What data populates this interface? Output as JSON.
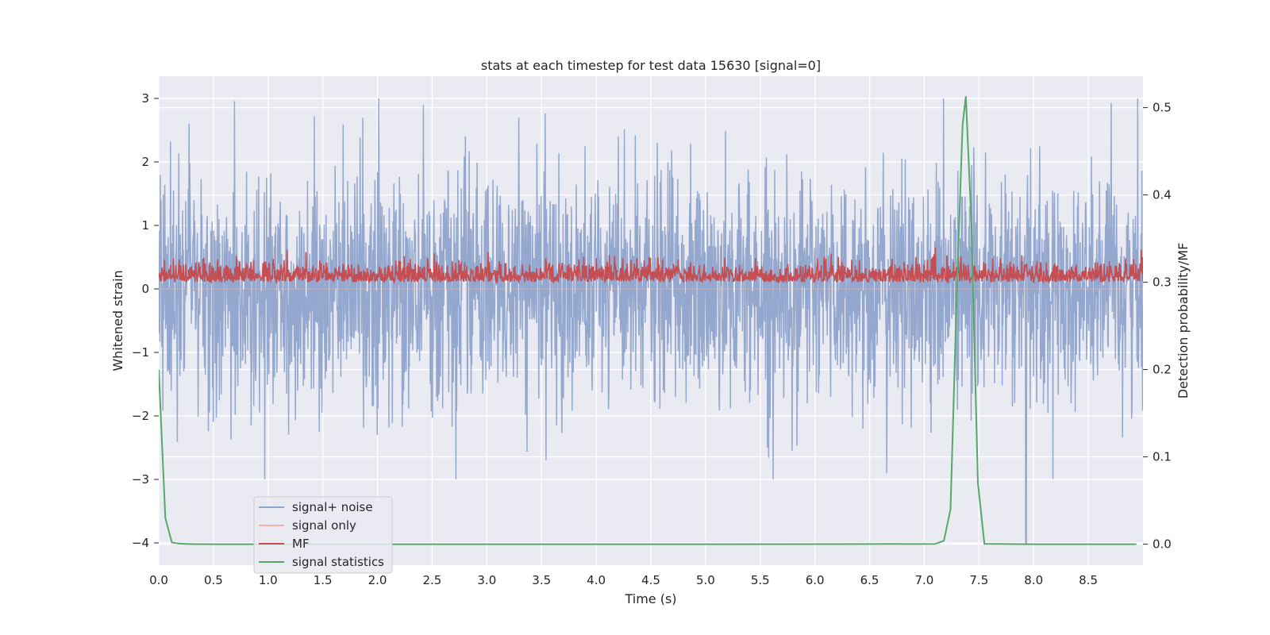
{
  "chart_data": {
    "type": "line",
    "title": "stats at each timestep for test data 15630 [signal=0]",
    "xlabel": "Time (s)",
    "ylabel": "Whitened strain",
    "ylabel_right": "Detection probability/MF",
    "xlim": [
      0.0,
      9.0
    ],
    "ylim": [
      -4.35,
      3.35
    ],
    "ylim_right": [
      -0.024,
      0.536
    ],
    "xticks": [
      "0.0",
      "0.5",
      "1.0",
      "1.5",
      "2.0",
      "2.5",
      "3.0",
      "3.5",
      "4.0",
      "4.5",
      "5.0",
      "5.5",
      "6.0",
      "6.5",
      "7.0",
      "7.5",
      "8.0",
      "8.5"
    ],
    "yticks": [
      "3",
      "2",
      "1",
      "0",
      "−1",
      "−2",
      "−3",
      "−4"
    ],
    "yticks_right": [
      "0.5",
      "0.4",
      "0.3",
      "0.2",
      "0.1",
      "0.0"
    ],
    "grid": true,
    "legend_position": "lower-left",
    "series": [
      {
        "name": "signal+ noise",
        "color": "#8fa4cc",
        "axis": "left",
        "kind": "noise",
        "mean": 0.0,
        "std": 0.9,
        "peak_max": 3.0,
        "peak_min": -4.0,
        "outlier_t": 7.93
      },
      {
        "name": "signal only",
        "color": "#f0b39c",
        "axis": "left",
        "kind": "flat"
      },
      {
        "name": "MF",
        "color": "#c44e52",
        "axis": "right",
        "kind": "noise",
        "base": 0.3,
        "range_max": 0.34
      },
      {
        "name": "signal statistics",
        "color": "#55a868",
        "axis": "right",
        "kind": "line",
        "x": [
          0.0,
          0.06,
          0.12,
          0.18,
          0.25,
          0.35,
          0.5,
          1.0,
          3.0,
          5.0,
          6.5,
          6.7,
          6.9,
          7.1,
          7.18,
          7.24,
          7.3,
          7.35,
          7.38,
          7.43,
          7.49,
          7.55,
          7.7,
          8.0,
          8.5,
          8.94
        ],
        "y": [
          0.2,
          0.03,
          0.002,
          0.0007,
          0.0003,
          0.0001,
          0.0,
          0.0,
          0.0,
          0.0,
          0.0002,
          0.0004,
          0.0002,
          0.0003,
          0.004,
          0.04,
          0.3,
          0.48,
          0.513,
          0.37,
          0.07,
          0.0005,
          0.0003,
          0.0,
          0.0,
          0.0
        ]
      }
    ]
  }
}
